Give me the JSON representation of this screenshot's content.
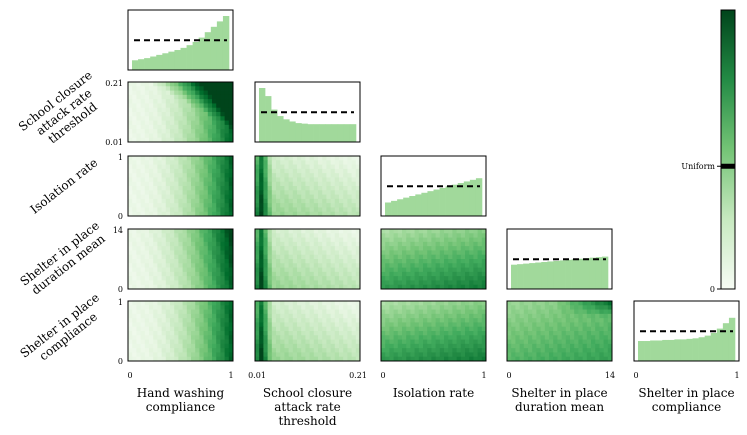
{
  "chart_data": {
    "type": "heatmap",
    "title": "",
    "grid": false,
    "colormap": "Greens",
    "variables": [
      {
        "name": "Hand washing compliance",
        "axis_min": "0",
        "axis_max": "1"
      },
      {
        "name": "School closure attack rate threshold",
        "axis_min": "0.01",
        "axis_max": "0.21"
      },
      {
        "name": "Isolation rate",
        "axis_min": "0",
        "axis_max": "1"
      },
      {
        "name": "Shelter in place duration mean",
        "axis_min": "0",
        "axis_max": "14"
      },
      {
        "name": "Shelter in place compliance",
        "axis_min": "0",
        "axis_max": "1"
      }
    ],
    "x_axis_labels": [
      [
        "Hand washing",
        "compliance"
      ],
      [
        "School closure",
        "attack rate",
        "threshold"
      ],
      [
        "Isolation rate"
      ],
      [
        "Shelter in place",
        "duration mean"
      ],
      [
        "Shelter in place",
        "compliance"
      ]
    ],
    "y_axis_labels": [
      [
        "School closure",
        "attack rate",
        "threshold"
      ],
      [
        "Isolation rate"
      ],
      [
        "Shelter in place",
        "duration mean"
      ],
      [
        "Shelter in place",
        "compliance"
      ]
    ],
    "y_ticks": [
      [
        "0.01",
        "0.21"
      ],
      [
        "0",
        "1"
      ],
      [
        "0",
        "14"
      ],
      [
        "0",
        "1"
      ]
    ],
    "x_ticks": [
      [
        "0",
        "1"
      ],
      [
        "0.01",
        "0.21"
      ],
      [
        "0",
        "1"
      ],
      [
        "0",
        "14"
      ],
      [
        "0",
        "1"
      ]
    ],
    "marginal_histograms": [
      {
        "variable": "Hand washing compliance",
        "uniform_level": 0.55,
        "values": [
          0.18,
          0.2,
          0.22,
          0.25,
          0.28,
          0.31,
          0.34,
          0.37,
          0.41,
          0.46,
          0.52,
          0.6,
          0.7,
          0.8,
          0.9,
          1.0
        ]
      },
      {
        "variable": "School closure attack rate threshold",
        "uniform_level": 0.55,
        "values": [
          1.0,
          0.85,
          0.6,
          0.48,
          0.42,
          0.38,
          0.35,
          0.34,
          0.33,
          0.33,
          0.33,
          0.33,
          0.33,
          0.33,
          0.33,
          0.33
        ]
      },
      {
        "variable": "Isolation rate",
        "uniform_level": 0.55,
        "values": [
          0.25,
          0.28,
          0.31,
          0.34,
          0.37,
          0.4,
          0.43,
          0.46,
          0.49,
          0.52,
          0.55,
          0.58,
          0.61,
          0.64,
          0.67,
          0.7
        ]
      },
      {
        "variable": "Shelter in place duration mean",
        "uniform_level": 0.55,
        "values": [
          0.45,
          0.46,
          0.47,
          0.48,
          0.49,
          0.5,
          0.51,
          0.52,
          0.53,
          0.54,
          0.55,
          0.56,
          0.57,
          0.58,
          0.59,
          0.6
        ]
      },
      {
        "variable": "Shelter in place compliance",
        "uniform_level": 0.55,
        "values": [
          0.37,
          0.37,
          0.38,
          0.38,
          0.39,
          0.39,
          0.4,
          0.4,
          0.41,
          0.42,
          0.44,
          0.47,
          0.52,
          0.6,
          0.7,
          0.8
        ]
      }
    ],
    "colorbar": {
      "min_label": "0",
      "marker_label": "Uniform",
      "marker_level": 0.44
    },
    "colors": {
      "dark": "#00441b",
      "mid": "#41ab5d",
      "light": "#f7fcf5",
      "hist_fill": "#a1d99b",
      "hist_line": "#000000"
    }
  }
}
